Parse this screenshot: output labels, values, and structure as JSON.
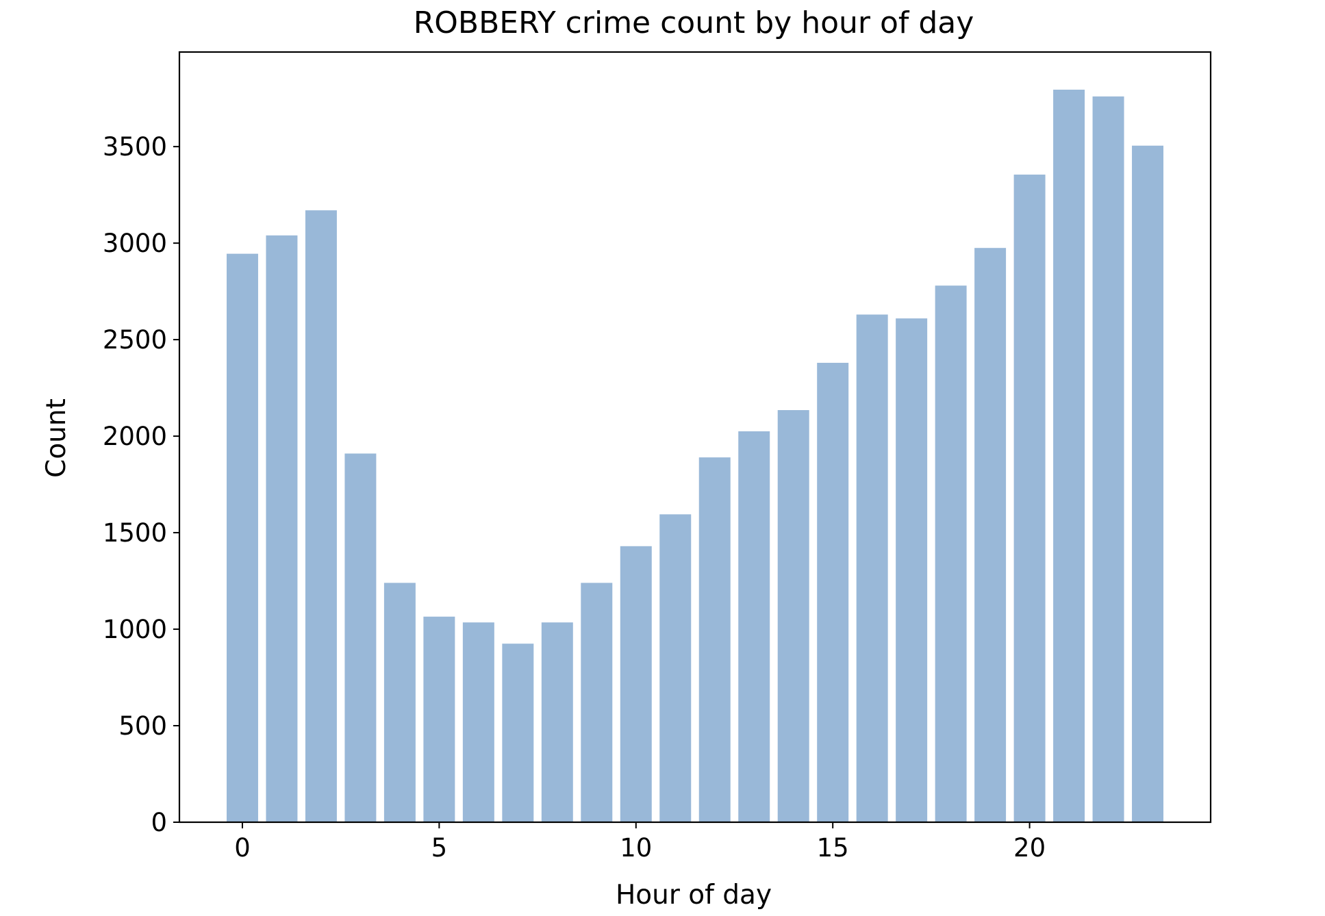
{
  "chart_data": {
    "type": "bar",
    "title": "ROBBERY crime count by hour of day",
    "xlabel": "Hour of day",
    "ylabel": "Count",
    "x": [
      0,
      1,
      2,
      3,
      4,
      5,
      6,
      7,
      8,
      9,
      10,
      11,
      12,
      13,
      14,
      15,
      16,
      17,
      18,
      19,
      20,
      21,
      22,
      23
    ],
    "values": [
      2945,
      3040,
      3170,
      1910,
      1240,
      1065,
      1035,
      925,
      1035,
      1240,
      1430,
      1595,
      1890,
      2025,
      2135,
      2380,
      2630,
      2610,
      2780,
      2975,
      3355,
      3795,
      3760,
      3505
    ],
    "xlim": [
      -1.6,
      24.6
    ],
    "ylim": [
      0,
      3990
    ],
    "xticks": [
      0,
      5,
      10,
      15,
      20
    ],
    "yticks": [
      0,
      500,
      1000,
      1500,
      2000,
      2500,
      3000,
      3500
    ],
    "bar_color": "#99b8d8",
    "grid": false,
    "legend": "none"
  }
}
